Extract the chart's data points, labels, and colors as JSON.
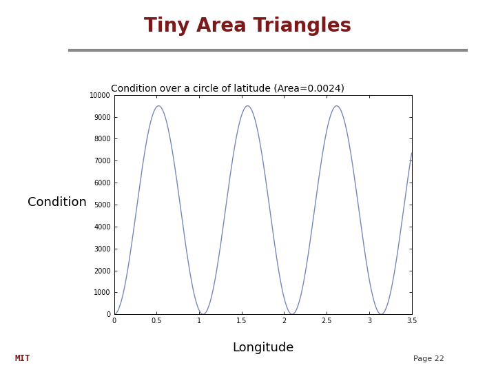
{
  "title": "Tiny Area Triangles",
  "title_color": "#7B1A1A",
  "subtitle": "Condition over a circle of latitude (Area=0.0024)",
  "ylabel_text": "Condition",
  "xlabel_text": "Longitude",
  "page_text": "Page 22",
  "ylim": [
    0,
    10000
  ],
  "xlim": [
    0,
    3.5
  ],
  "yticks": [
    0,
    1000,
    2000,
    3000,
    4000,
    5000,
    6000,
    7000,
    8000,
    9000,
    10000
  ],
  "xticks": [
    0,
    0.5,
    1,
    1.5,
    2,
    2.5,
    3,
    3.5
  ],
  "line_color": "#7788BB",
  "background_color": "#FFFFFF",
  "separator_color": "#888888",
  "num_points": 2000,
  "x_start": 0,
  "x_end": 3.5,
  "amplitude": 9500,
  "peak1": 0.5,
  "peak2": 1.57,
  "peak3": 2.62
}
